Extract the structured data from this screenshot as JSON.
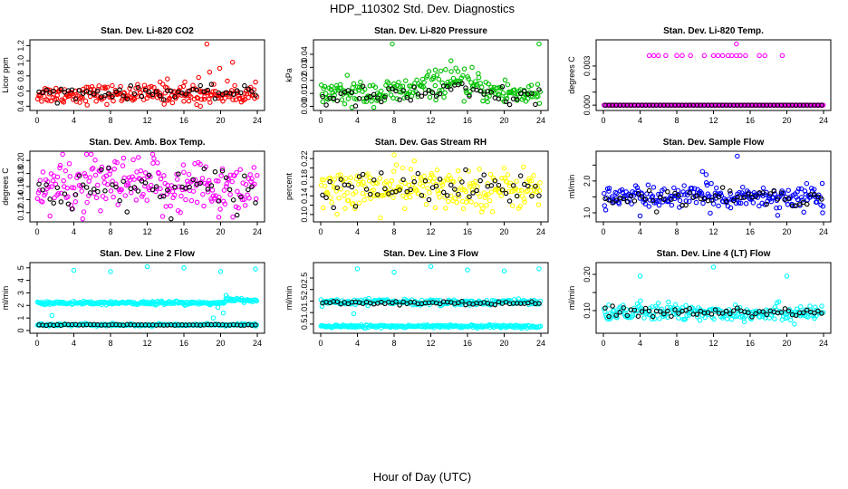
{
  "figure": {
    "title": "HDP_110302  Std. Dev. Diagnostics",
    "xlabel": "Hour of Day (UTC)"
  },
  "chart_data": [
    {
      "type": "scatter",
      "title": "Stan. Dev. Li-820 CO2",
      "ylabel": "Licor ppm",
      "xlim": [
        0,
        24
      ],
      "ylim": [
        0.38,
        1.24
      ],
      "xticks": [
        0,
        4,
        8,
        12,
        16,
        20,
        24
      ],
      "yticks": [
        0.4,
        0.6,
        0.8,
        1.0,
        1.2
      ],
      "ytick_labels": [
        "0.4",
        "0.6",
        "0.8",
        "1.0",
        "1.2"
      ],
      "color": "#ff0000",
      "base": 0.56,
      "spread": 0.06,
      "trend": 0.0,
      "outliers": [
        [
          13.4,
          0.72
        ],
        [
          14.2,
          0.76
        ],
        [
          17.6,
          0.78
        ],
        [
          18.5,
          1.22
        ],
        [
          18.8,
          0.85
        ],
        [
          19.9,
          0.9
        ],
        [
          21.3,
          0.98
        ],
        [
          16.1,
          0.72
        ],
        [
          17.8,
          0.4
        ]
      ],
      "black_base": 0.58,
      "black_spread": 0.04
    },
    {
      "type": "scatter",
      "title": "Stan. Dev. Li-820 Pressure",
      "ylabel": "kPa",
      "xlim": [
        0,
        24
      ],
      "ylim": [
        -0.001,
        0.049
      ],
      "xticks": [
        0,
        4,
        8,
        12,
        16,
        20,
        24
      ],
      "yticks": [
        0.0,
        0.01,
        0.02,
        0.03,
        0.04
      ],
      "ytick_labels": [
        "0.00",
        "0.01",
        "0.02",
        "0.03",
        "0.04"
      ],
      "color": "#00c000",
      "base": 0.01,
      "spread": 0.005,
      "hump": 0.008,
      "outliers": [
        [
          7.8,
          0.048
        ],
        [
          14.2,
          0.035
        ],
        [
          16.5,
          0.03
        ],
        [
          23.8,
          0.048
        ],
        [
          12.5,
          0.028
        ]
      ],
      "black_base": 0.007,
      "black_spread": 0.004
    },
    {
      "type": "scatter",
      "title": "Stan. Dev. Li-820 Temp.",
      "ylabel": "degrees C",
      "xlim": [
        0,
        24
      ],
      "ylim": [
        -0.0002,
        0.0048
      ],
      "xticks": [
        0,
        4,
        8,
        12,
        16,
        20,
        24
      ],
      "yticks": [
        0.0,
        0.001,
        0.002,
        0.003
      ],
      "ytick_labels": [
        "0.000",
        "",
        "",
        "0.003"
      ],
      "color": "#ff00ff",
      "mode": "quantized",
      "base": 0.0,
      "level2": 0.0038,
      "level2_x": [
        5.0,
        5.5,
        6.0,
        6.8,
        8.0,
        8.6,
        9.5,
        11.0,
        12.0,
        12.5,
        13.0,
        13.6,
        14.0,
        14.5,
        14.9,
        15.5,
        17.0,
        17.6,
        19.5
      ],
      "outliers": [
        [
          14.5,
          0.0047
        ]
      ],
      "black_base": 0.0,
      "black_spread": 0.0
    },
    {
      "type": "scatter",
      "title": "Stan. Dev. Amb. Box Temp.",
      "ylabel": "degrees C",
      "xlim": [
        0,
        24
      ],
      "ylim": [
        0.11,
        0.21
      ],
      "xticks": [
        0,
        4,
        8,
        12,
        16,
        20,
        24
      ],
      "yticks": [
        0.12,
        0.14,
        0.16,
        0.18,
        0.2
      ],
      "ytick_labels": [
        "0.12",
        "0.14",
        "0.16",
        "0.18",
        "0.20"
      ],
      "color": "#ff00ff",
      "base": 0.16,
      "spread": 0.022,
      "outliers": [
        [
          19.8,
          0.113
        ]
      ],
      "black_base": 0.155,
      "black_spread": 0.018
    },
    {
      "type": "scatter",
      "title": "Stan. Dev. Gas Stream RH",
      "ylabel": "percent",
      "xlim": [
        0,
        24
      ],
      "ylim": [
        0.09,
        0.23
      ],
      "xticks": [
        0,
        4,
        8,
        12,
        16,
        20,
        24
      ],
      "yticks": [
        0.1,
        0.12,
        0.14,
        0.16,
        0.18,
        0.2,
        0.22
      ],
      "ytick_labels": [
        "0.10",
        "",
        "0.14",
        "",
        "0.18",
        "",
        "0.22"
      ],
      "color": "#ffff00",
      "base": 0.155,
      "spread": 0.022,
      "outliers": [
        [
          8.0,
          0.228
        ],
        [
          10.2,
          0.215
        ]
      ],
      "black_base": 0.155,
      "black_spread": 0.018
    },
    {
      "type": "scatter",
      "title": "Stan. Dev. Sample Flow",
      "ylabel": "ml/min",
      "xlim": [
        0,
        24
      ],
      "ylim": [
        0.8,
        2.85
      ],
      "xticks": [
        0,
        4,
        8,
        12,
        16,
        20,
        24
      ],
      "yticks": [
        1.0,
        1.5,
        2.0,
        2.5
      ],
      "ytick_labels": [
        "1.0",
        "",
        "2.0",
        ""
      ],
      "color": "#0000ff",
      "base": 1.5,
      "spread": 0.17,
      "outliers": [
        [
          14.6,
          2.78
        ],
        [
          10.8,
          2.3
        ],
        [
          11.2,
          2.2
        ],
        [
          19.0,
          0.92
        ],
        [
          23.9,
          1.0
        ],
        [
          4.0,
          0.9
        ]
      ],
      "black_base": 1.48,
      "black_spread": 0.12
    },
    {
      "type": "scatter",
      "title": "Stan. Dev. Line 2 Flow",
      "ylabel": "ml/min",
      "xlim": [
        0,
        24
      ],
      "ylim": [
        0,
        5.2
      ],
      "xticks": [
        0,
        4,
        8,
        12,
        16,
        20,
        24
      ],
      "yticks": [
        0,
        1,
        2,
        3,
        4,
        5
      ],
      "ytick_labels": [
        "0",
        "1",
        "2",
        "3",
        "4",
        "5"
      ],
      "color": "#00ffff",
      "mode": "bands",
      "bands": [
        [
          2.2,
          0.07
        ],
        [
          0.45,
          0.04
        ]
      ],
      "step_after": 20.5,
      "step_value": 2.45,
      "outliers": [
        [
          4.0,
          4.8
        ],
        [
          8.0,
          4.7
        ],
        [
          12.0,
          5.1
        ],
        [
          16.0,
          5.0
        ],
        [
          20.0,
          4.7
        ],
        [
          23.8,
          4.9
        ],
        [
          19.7,
          1.85
        ],
        [
          20.6,
          2.8
        ],
        [
          20.3,
          1.4
        ],
        [
          19.2,
          1.0
        ],
        [
          1.6,
          1.2
        ]
      ],
      "black_base": 0.45,
      "black_spread": 0.02
    },
    {
      "type": "scatter",
      "title": "Stan. Dev. Line 3 Flow",
      "ylabel": "ml/min",
      "xlim": [
        0,
        24
      ],
      "ylim": [
        0.22,
        3.05
      ],
      "xticks": [
        0,
        4,
        8,
        12,
        16,
        20,
        24
      ],
      "yticks": [
        0.5,
        1.0,
        1.5,
        2.0,
        2.5
      ],
      "ytick_labels": [
        "0.5",
        "1.0",
        "1.5",
        "2.0",
        "2.5"
      ],
      "color": "#00ffff",
      "mode": "bands",
      "bands": [
        [
          1.45,
          0.06
        ],
        [
          0.4,
          0.03
        ]
      ],
      "outliers": [
        [
          4.0,
          2.9
        ],
        [
          8.0,
          2.75
        ],
        [
          12.0,
          3.0
        ],
        [
          16.0,
          2.85
        ],
        [
          20.0,
          2.8
        ],
        [
          23.8,
          2.9
        ],
        [
          3.6,
          0.95
        ]
      ],
      "black_base": 1.42,
      "black_spread": 0.05
    },
    {
      "type": "scatter",
      "title": "Stan. Dev. Line 4 (LT) Flow",
      "ylabel": "ml/min",
      "xlim": [
        0,
        24
      ],
      "ylim": [
        0.045,
        0.225
      ],
      "xticks": [
        0,
        4,
        8,
        12,
        16,
        20,
        24
      ],
      "yticks": [
        0.1,
        0.15,
        0.2
      ],
      "ytick_labels": [
        "0.10",
        "",
        "0.20"
      ],
      "color": "#00ffff",
      "base": 0.095,
      "spread": 0.012,
      "outliers": [
        [
          4.0,
          0.195
        ],
        [
          12.0,
          0.22
        ],
        [
          20.0,
          0.195
        ]
      ],
      "black_base": 0.095,
      "black_spread": 0.008
    }
  ]
}
